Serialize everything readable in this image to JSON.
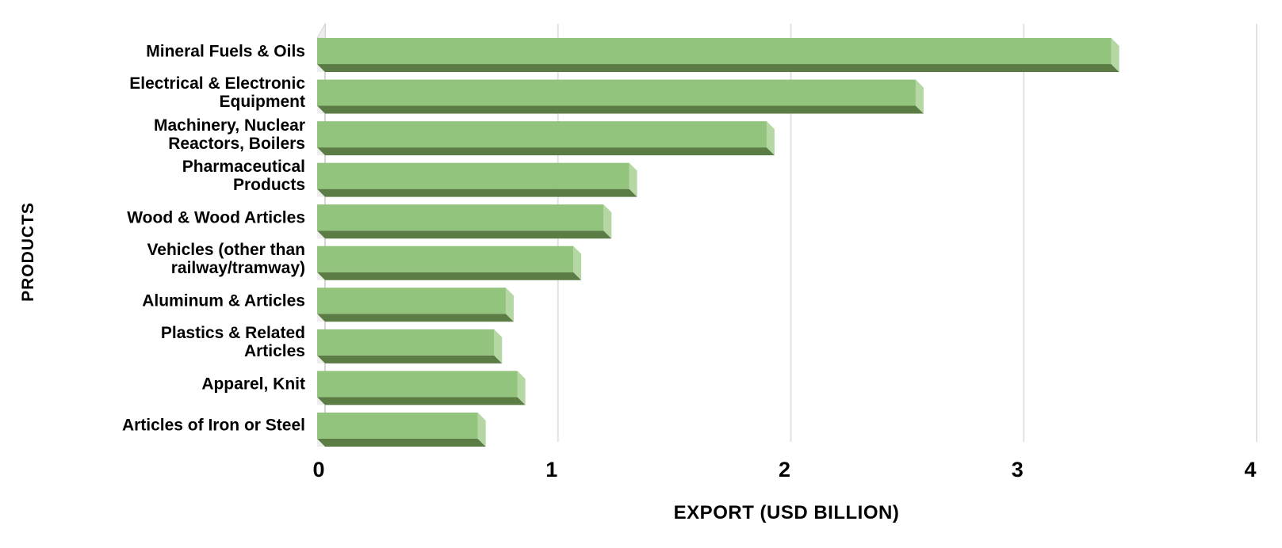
{
  "chart_data": {
    "type": "bar",
    "orientation": "horizontal",
    "title": "",
    "xlabel": "EXPORT (USD BILLION)",
    "ylabel": "PRODUCTS",
    "xlim": [
      0,
      4
    ],
    "xticks": [
      "0",
      "1",
      "2",
      "3",
      "4"
    ],
    "grid": true,
    "legend": false,
    "categories": [
      "Mineral Fuels & Oils",
      "Electrical & Electronic Equipment",
      "Machinery, Nuclear Reactors, Boilers",
      "Pharmaceutical Products",
      "Wood & Wood Articles",
      "Vehicles (other than railway/tramway)",
      "Aluminum & Articles",
      "Plastics & Related Articles",
      "Apparel, Knit",
      "Articles of Iron or Steel"
    ],
    "label_lines": [
      [
        "Mineral Fuels & Oils"
      ],
      [
        "Electrical & Electronic",
        "Equipment"
      ],
      [
        "Machinery, Nuclear",
        "Reactors, Boilers"
      ],
      [
        "Pharmaceutical",
        "Products"
      ],
      [
        "Wood & Wood Articles"
      ],
      [
        "Vehicles (other than",
        "railway/tramway)"
      ],
      [
        "Aluminum & Articles"
      ],
      [
        "Plastics & Related",
        "Articles"
      ],
      [
        "Apparel, Knit"
      ],
      [
        "Articles of Iron or Steel"
      ]
    ],
    "values": [
      3.41,
      2.57,
      1.93,
      1.34,
      1.23,
      1.1,
      0.81,
      0.76,
      0.86,
      0.69
    ],
    "colors": {
      "bar_front": "#93c47d",
      "bar_end": "#b5d7a3",
      "bar_bottom": "#5b7d45",
      "gridline": "#e2e2e2",
      "wall_line": "#d6d6d6",
      "floor_wedge": "#ededed",
      "text": "#000000",
      "background": "#ffffff"
    }
  }
}
